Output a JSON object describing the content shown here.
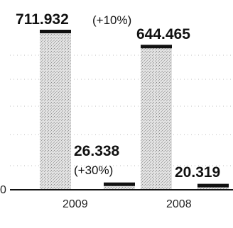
{
  "chart_data": {
    "type": "bar",
    "categories": [
      "2009",
      "2008"
    ],
    "y_zero_label": "0",
    "series": [
      {
        "values": [
          711932,
          644465
        ],
        "value_labels": [
          "711.932",
          "644.465"
        ],
        "change_labels": [
          "(+10%)",
          ""
        ],
        "color": "#d6d6d6"
      },
      {
        "values": [
          26338,
          20319
        ],
        "value_labels": [
          "26.338",
          "20.319"
        ],
        "change_labels": [
          "(+30%)",
          ""
        ],
        "color": "#d6d6d6"
      }
    ],
    "ylim": [
      0,
      711932
    ],
    "grid": "dotted",
    "legend": "none",
    "bar_cap_color": "#111111",
    "bar_hatch_color": "#9a9a9a"
  }
}
